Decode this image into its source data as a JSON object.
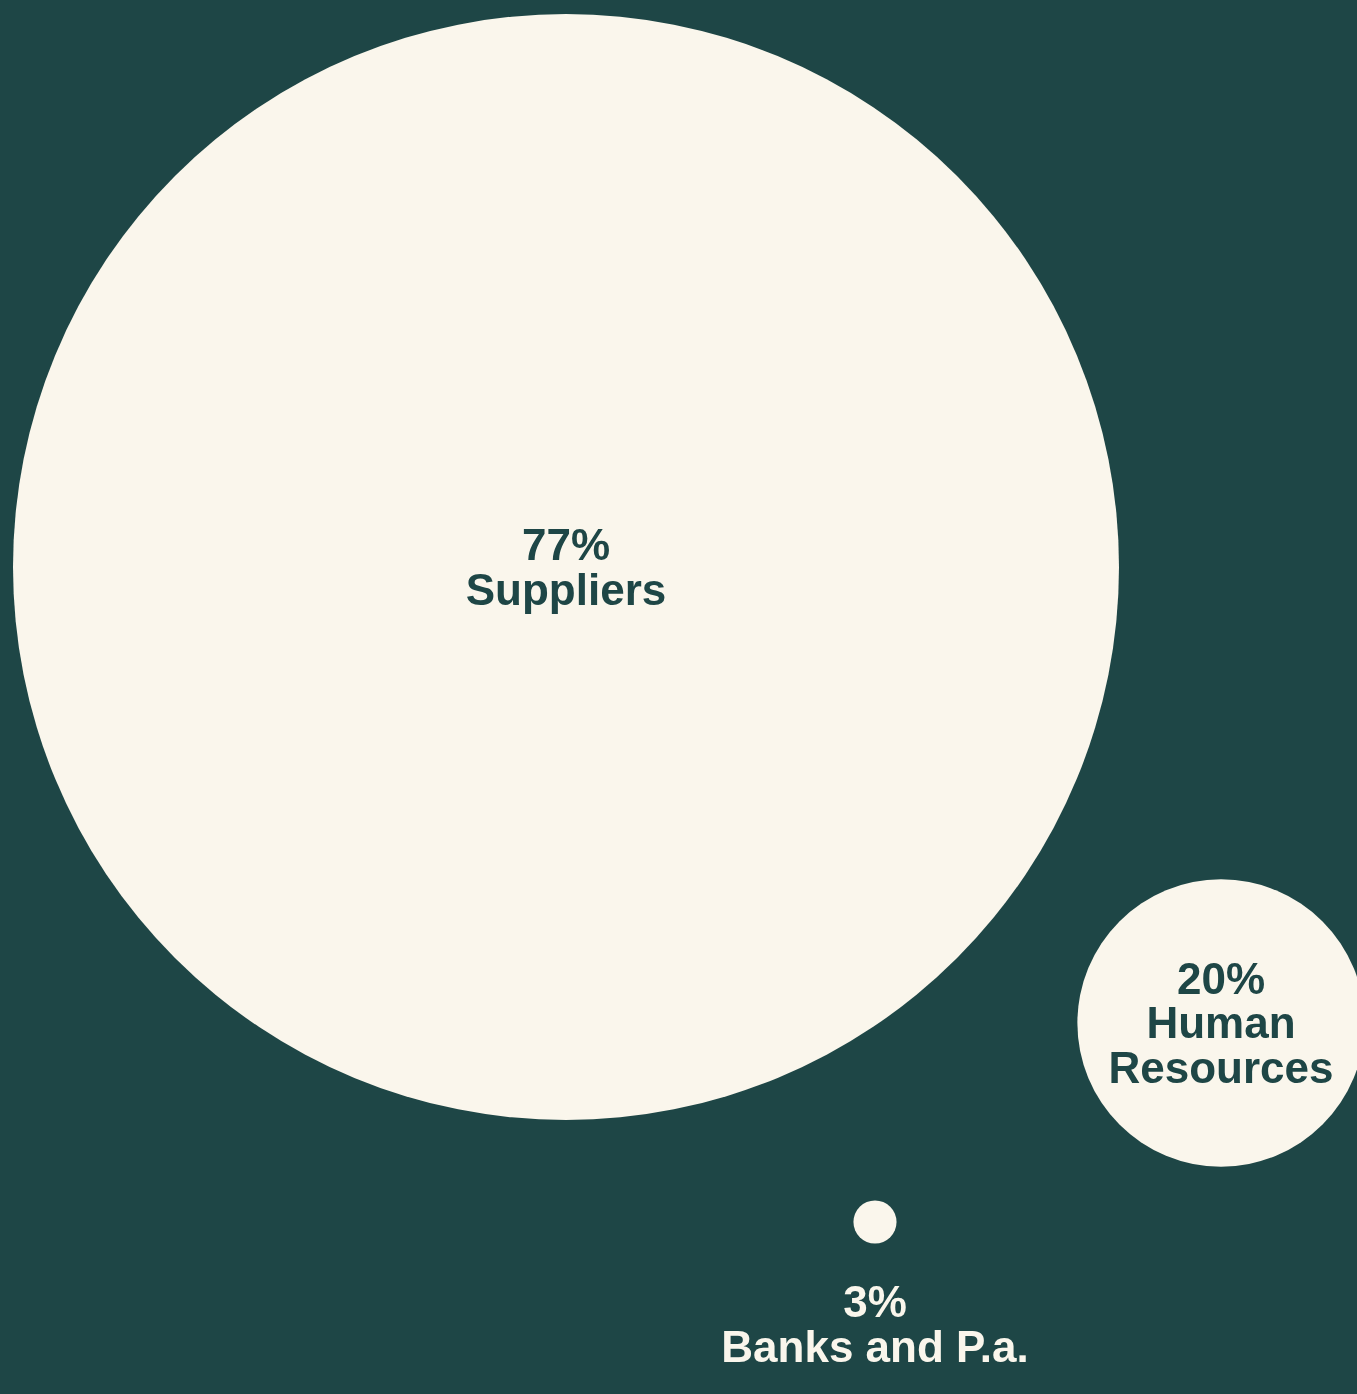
{
  "chart_data": {
    "type": "other",
    "categories": [
      "Suppliers",
      "Human Resources",
      "Banks and P.a."
    ],
    "values": [
      77,
      20,
      3
    ],
    "value_labels": [
      "77%",
      "20%",
      "3%"
    ],
    "colors": [
      "#faf6ec",
      "#faf6ec",
      "#faf6ec"
    ]
  }
}
